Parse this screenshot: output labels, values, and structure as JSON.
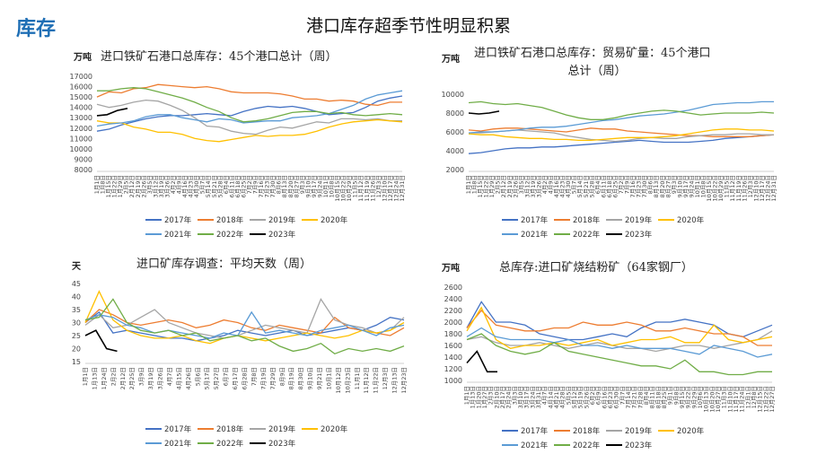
{
  "header": {
    "section_label": "库存",
    "title": "港口库存超季节性明显积累"
  },
  "chart_data": [
    {
      "type": "line",
      "title": "进口铁矿石港口总库存：45个港口总计（周）",
      "unit": "万吨",
      "ylim": [
        8000,
        17000
      ],
      "yticks": [
        8000,
        9000,
        10000,
        11000,
        12000,
        13000,
        14000,
        15000,
        16000,
        17000
      ],
      "grid": false,
      "legend": "bottom",
      "xticks": [
        "1月1日",
        "1月8日",
        "1月15日",
        "1月22日",
        "1月29日",
        "2月5日",
        "2月12日",
        "2月19日",
        "2月26日",
        "3月5日",
        "3月12日",
        "3月19日",
        "3月26日",
        "4月2日",
        "4月9日",
        "4月16日",
        "4月23日",
        "4月30日",
        "5月7日",
        "5月14日",
        "5月21日",
        "5月28日",
        "6月4日",
        "6月11日",
        "6月18日",
        "6月25日",
        "7月2日",
        "7月9日",
        "7月16日",
        "7月23日",
        "7月30日",
        "8月6日",
        "8月13日",
        "8月20日",
        "8月27日",
        "9月3日",
        "9月10日",
        "9月17日",
        "9月24日",
        "10月1日",
        "10月8日",
        "10月15日",
        "10月22日",
        "10月29日",
        "11月5日",
        "11月12日",
        "11月19日",
        "11月26日",
        "12月3日",
        "12月10日",
        "12月17日",
        "12月24日",
        "12月31日"
      ],
      "series": [
        {
          "name": "2017年",
          "color": "#4472c4",
          "values": [
            11700,
            11900,
            12300,
            12600,
            12900,
            13100,
            13200,
            13200,
            13300,
            13400,
            13300,
            13200,
            13600,
            13900,
            14100,
            14000,
            14100,
            13900,
            13600,
            13300,
            13400,
            13500,
            14000,
            14600,
            14900,
            15100
          ]
        },
        {
          "name": "2018年",
          "color": "#ed7d31",
          "values": [
            15000,
            15500,
            15400,
            15800,
            15900,
            16200,
            16100,
            16000,
            15900,
            16000,
            15800,
            15500,
            15400,
            15400,
            15400,
            15300,
            15100,
            14800,
            14800,
            14600,
            14700,
            14600,
            14300,
            14200,
            14500,
            14500
          ]
        },
        {
          "name": "2019年",
          "color": "#a5a5a5",
          "values": [
            14300,
            14000,
            14200,
            14500,
            14700,
            14600,
            14200,
            13700,
            13000,
            12200,
            12100,
            11700,
            11500,
            11400,
            11800,
            12100,
            12000,
            12300,
            12600,
            12500,
            12900,
            12900,
            12800,
            12900,
            12700,
            12700
          ]
        },
        {
          "name": "2020年",
          "color": "#ffc000",
          "values": [
            12700,
            12500,
            12500,
            12100,
            11900,
            11600,
            11600,
            11400,
            11000,
            10800,
            10700,
            10900,
            11100,
            11300,
            11200,
            11300,
            11300,
            11400,
            11700,
            12100,
            12400,
            12600,
            12700,
            12800,
            12700,
            12600
          ]
        },
        {
          "name": "2021年",
          "color": "#5b9bd5",
          "values": [
            12200,
            12400,
            12500,
            12700,
            13100,
            13300,
            13300,
            13000,
            12800,
            12600,
            12900,
            12800,
            12500,
            12600,
            12700,
            12700,
            13000,
            13100,
            13200,
            13400,
            13800,
            14200,
            14800,
            15200,
            15400,
            15600
          ]
        },
        {
          "name": "2022年",
          "color": "#70ad47",
          "values": [
            15600,
            15600,
            15800,
            15900,
            15800,
            15500,
            15200,
            14900,
            14500,
            14000,
            13600,
            13000,
            12600,
            12700,
            12900,
            13200,
            13500,
            13600,
            13600,
            13400,
            13500,
            13300,
            13200,
            13300,
            13400,
            13300
          ]
        },
        {
          "name": "2023年",
          "color": "#000000",
          "values": [
            13200,
            13300,
            13700,
            13900
          ]
        }
      ]
    },
    {
      "type": "line",
      "title": "进口铁矿石港口总库存：贸易矿量：45个港口总计（周）",
      "unit": "万吨",
      "ylim": [
        2000,
        10000
      ],
      "yticks": [
        2000,
        4000,
        6000,
        8000,
        10000
      ],
      "grid": false,
      "legend": "bottom",
      "xticks": [
        "1月1日",
        "1月8日",
        "1月15日",
        "1月22日",
        "1月29日",
        "2月5日",
        "2月12日",
        "2月19日",
        "2月26日",
        "3月5日",
        "3月12日",
        "3月19日",
        "3月26日",
        "4月2日",
        "4月9日",
        "4月16日",
        "4月23日",
        "4月30日",
        "5月7日",
        "5月14日",
        "5月21日",
        "5月28日",
        "6月4日",
        "6月11日",
        "6月18日",
        "6月25日",
        "7月2日",
        "7月9日",
        "7月16日",
        "7月23日",
        "7月30日",
        "8月6日",
        "8月13日",
        "8月20日",
        "8月27日",
        "9月3日",
        "9月10日",
        "9月17日",
        "9月24日",
        "10月1日",
        "10月8日",
        "10月15日",
        "10月22日",
        "10月29日",
        "11月5日",
        "11月12日",
        "11月19日",
        "11月26日",
        "12月3日",
        "12月10日",
        "12月17日",
        "12月24日",
        "12月31日"
      ],
      "series": [
        {
          "name": "2017年",
          "color": "#4472c4",
          "values": [
            3700,
            3800,
            4000,
            4200,
            4300,
            4300,
            4400,
            4400,
            4500,
            4600,
            4700,
            4800,
            4900,
            5000,
            5100,
            5000,
            4900,
            4900,
            4900,
            5000,
            5100,
            5300,
            5400,
            5500,
            5600,
            5700
          ]
        },
        {
          "name": "2018年",
          "color": "#ed7d31",
          "values": [
            6200,
            6100,
            6300,
            6400,
            6400,
            6300,
            6200,
            6100,
            6000,
            6200,
            6400,
            6300,
            6300,
            6100,
            6000,
            5900,
            5800,
            5700,
            5600,
            5600,
            5500,
            5500,
            5500,
            5500,
            5600,
            5700
          ]
        },
        {
          "name": "2019年",
          "color": "#a5a5a5",
          "values": [
            5900,
            5900,
            6000,
            6100,
            6200,
            6100,
            6000,
            5900,
            5600,
            5400,
            5200,
            5100,
            5000,
            5100,
            5300,
            5400,
            5300,
            5300,
            5500,
            5600,
            5700,
            5700,
            5800,
            5800,
            5700,
            5700
          ]
        },
        {
          "name": "2020年",
          "color": "#ffc000",
          "values": [
            5800,
            5700,
            5700,
            5500,
            5400,
            5300,
            5300,
            5200,
            5200,
            5100,
            5100,
            5200,
            5300,
            5400,
            5400,
            5400,
            5500,
            5600,
            5800,
            6000,
            6200,
            6300,
            6300,
            6200,
            6200,
            6100
          ]
        },
        {
          "name": "2021年",
          "color": "#5b9bd5",
          "values": [
            5900,
            6000,
            6000,
            6100,
            6200,
            6400,
            6500,
            6500,
            6600,
            6800,
            7000,
            7200,
            7300,
            7500,
            7700,
            7800,
            7900,
            8100,
            8300,
            8600,
            8900,
            9000,
            9100,
            9100,
            9200,
            9200
          ]
        },
        {
          "name": "2022年",
          "color": "#70ad47",
          "values": [
            9100,
            9200,
            9000,
            8900,
            9000,
            8800,
            8600,
            8200,
            7800,
            7500,
            7300,
            7300,
            7500,
            7800,
            8000,
            8200,
            8300,
            8200,
            8000,
            7800,
            7900,
            8000,
            8000,
            8000,
            8100,
            8000
          ]
        },
        {
          "name": "2023年",
          "color": "#000000",
          "values": [
            8000,
            7900,
            8000,
            8200
          ]
        }
      ]
    },
    {
      "type": "line",
      "title": "进口矿库存调查：平均天数（周）",
      "unit": "天",
      "ylim": [
        15,
        45
      ],
      "yticks": [
        15,
        20,
        25,
        30,
        35,
        40,
        45
      ],
      "grid": false,
      "legend": "bottom",
      "xticks": [
        "1月1日",
        "1月13日",
        "1月24日",
        "2月2日",
        "2月12日",
        "2月25日",
        "3月9日",
        "3月19日",
        "3月26日",
        "4月7日",
        "4月15日",
        "4月26日",
        "5月6日",
        "5月17日",
        "5月27日",
        "6月7日",
        "6月17日",
        "6月28日",
        "7月8日",
        "7月19日",
        "7月29日",
        "8月9日",
        "8月19日",
        "8月30日",
        "9月10日",
        "9月21日",
        "10月1日",
        "10月12日",
        "10月23日",
        "11月1日",
        "11月12日",
        "11月22日",
        "12月3日",
        "12月13日",
        "12月23日"
      ],
      "series": [
        {
          "name": "2017年",
          "color": "#4472c4",
          "values": [
            30,
            34,
            26,
            27,
            26,
            25,
            24,
            24,
            23,
            24,
            25,
            27,
            26,
            25,
            26,
            27,
            25,
            26,
            27,
            28,
            27,
            29,
            32,
            31
          ]
        },
        {
          "name": "2018年",
          "color": "#ed7d31",
          "values": [
            30,
            35,
            33,
            30,
            29,
            30,
            31,
            30,
            28,
            29,
            31,
            30,
            28,
            27,
            29,
            28,
            27,
            26,
            32,
            28,
            27,
            26,
            25,
            28
          ]
        },
        {
          "name": "2019年",
          "color": "#a5a5a5",
          "values": [
            29,
            33,
            28,
            29,
            32,
            35,
            30,
            28,
            26,
            25,
            24,
            25,
            27,
            29,
            28,
            27,
            26,
            39,
            31,
            29,
            28,
            26,
            27,
            32
          ]
        },
        {
          "name": "2020年",
          "color": "#ffc000",
          "values": [
            30,
            42,
            31,
            27,
            25,
            24,
            24,
            25,
            23,
            22,
            24,
            25,
            24,
            23,
            24,
            25,
            26,
            25,
            24,
            25,
            27,
            26,
            27,
            30
          ]
        },
        {
          "name": "2021年",
          "color": "#5b9bd5",
          "values": [
            31,
            33,
            32,
            29,
            28,
            26,
            27,
            26,
            25,
            24,
            26,
            25,
            34,
            26,
            27,
            26,
            25,
            27,
            28,
            29,
            27,
            25,
            28,
            29
          ]
        },
        {
          "name": "2022年",
          "color": "#70ad47",
          "values": [
            31,
            32,
            39,
            30,
            27,
            26,
            27,
            25,
            26,
            23,
            24,
            25,
            23,
            24,
            21,
            19,
            20,
            22,
            18,
            20,
            19,
            20,
            19,
            21
          ]
        },
        {
          "name": "2023年",
          "color": "#000000",
          "values": [
            25,
            27,
            20,
            19
          ]
        }
      ]
    },
    {
      "type": "line",
      "title": "总库存:进口矿烧结粉矿（64家钢厂）",
      "unit": "万吨",
      "ylim": [
        1000,
        2600
      ],
      "yticks": [
        1000,
        1200,
        1400,
        1600,
        1800,
        2000,
        2200,
        2400,
        2600
      ],
      "grid": false,
      "legend": "bottom",
      "xticks": [
        "1月1日",
        "1月13日",
        "1月20日",
        "1月27日",
        "2月3日",
        "2月10日",
        "2月17日",
        "2月24日",
        "3月3日",
        "3月10日",
        "3月17日",
        "3月24日",
        "3月31日",
        "4月7日",
        "4月14日",
        "4月21日",
        "4月28日",
        "5月5日",
        "5月12日",
        "5月19日",
        "5月26日",
        "6月2日",
        "6月9日",
        "6月16日",
        "6月23日",
        "6月30日",
        "7月7日",
        "7月14日",
        "7月21日",
        "7月28日",
        "8月4日",
        "8月11日",
        "8月18日",
        "8月25日",
        "9月1日",
        "9月8日",
        "9月15日",
        "9月22日",
        "9月29日",
        "10月6日",
        "10月13日",
        "10月20日",
        "10月27日",
        "11月3日",
        "11月10日",
        "11月17日",
        "11月24日",
        "12月1日",
        "12月8日",
        "12月15日",
        "12月22日",
        "12月27日"
      ],
      "series": [
        {
          "name": "2017年",
          "color": "#4472c4",
          "values": [
            1900,
            2350,
            2000,
            2000,
            1950,
            1800,
            1750,
            1700,
            1700,
            1750,
            1800,
            1750,
            1900,
            2000,
            2000,
            2050,
            2000,
            1950,
            1800,
            1750,
            1850,
            1950
          ]
        },
        {
          "name": "2018年",
          "color": "#ed7d31",
          "values": [
            1900,
            2200,
            1950,
            1900,
            1850,
            1850,
            1900,
            1900,
            2000,
            1950,
            1950,
            2000,
            1950,
            1850,
            1850,
            1900,
            1850,
            1800,
            1800,
            1750,
            1600,
            1600
          ]
        },
        {
          "name": "2019年",
          "color": "#a5a5a5",
          "values": [
            1700,
            1750,
            1650,
            1600,
            1600,
            1650,
            1600,
            1550,
            1600,
            1650,
            1600,
            1550,
            1550,
            1500,
            1550,
            1600,
            1600,
            1550,
            1600,
            1650,
            1700,
            1850
          ]
        },
        {
          "name": "2020年",
          "color": "#ffc000",
          "values": [
            1850,
            2250,
            1700,
            1550,
            1600,
            1600,
            1650,
            1600,
            1650,
            1700,
            1600,
            1650,
            1700,
            1700,
            1750,
            1650,
            1650,
            1950,
            1700,
            1650,
            1700,
            1750
          ]
        },
        {
          "name": "2021年",
          "color": "#5b9bd5",
          "values": [
            1750,
            1900,
            1750,
            1700,
            1700,
            1700,
            1650,
            1700,
            1600,
            1600,
            1550,
            1600,
            1550,
            1550,
            1550,
            1500,
            1450,
            1600,
            1550,
            1500,
            1400,
            1450
          ]
        },
        {
          "name": "2022年",
          "color": "#70ad47",
          "values": [
            1700,
            1800,
            1600,
            1500,
            1450,
            1500,
            1650,
            1500,
            1450,
            1400,
            1350,
            1300,
            1250,
            1250,
            1200,
            1350,
            1150,
            1150,
            1100,
            1100,
            1150,
            1150
          ]
        },
        {
          "name": "2023年",
          "color": "#000000",
          "values": [
            1300,
            1500,
            1150,
            1150
          ]
        }
      ]
    }
  ]
}
